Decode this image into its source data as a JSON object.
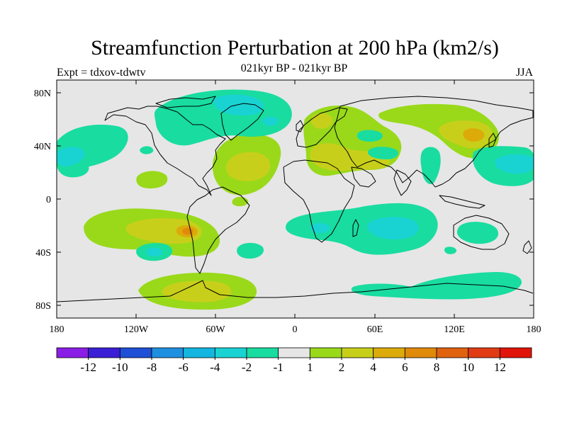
{
  "header": {
    "title": "Streamfunction Perturbation at 200 hPa (km2/s)",
    "subtitle": "021kyr BP - 021kyr BP",
    "expt_label": "Expt = tdxov-tdwtv",
    "season": "JJA"
  },
  "axes": {
    "lat_ticks": [
      "80N",
      "40N",
      "0",
      "40S",
      "80S"
    ],
    "lon_ticks": [
      "180",
      "120W",
      "60W",
      "0",
      "60E",
      "120E",
      "180"
    ]
  },
  "colorbar": {
    "colors": [
      "#8a1ee6",
      "#3a1ed6",
      "#1f4fd6",
      "#1f8fe0",
      "#14b6e0",
      "#19d3d3",
      "#19dca0",
      "#e6e6e6",
      "#99d91a",
      "#c8cf1a",
      "#dcab0a",
      "#e08a0a",
      "#e0620f",
      "#e03b14",
      "#e0140a"
    ],
    "labels": [
      "-12",
      "-10",
      "-8",
      "-6",
      "-4",
      "-2",
      "-1",
      "1",
      "2",
      "4",
      "6",
      "8",
      "10",
      "12"
    ]
  },
  "map_colors": {
    "background": "#e6e6e6",
    "teal": "#19dca0",
    "cyan": "#19d3d3",
    "lime": "#99d91a",
    "olive": "#c8cf1a",
    "gold": "#dcab0a",
    "orange": "#e08a0a",
    "coast": "#000000"
  }
}
